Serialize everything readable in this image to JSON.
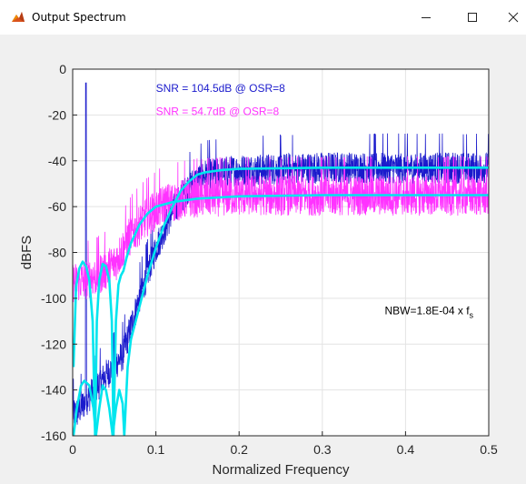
{
  "window": {
    "title": "Output Spectrum",
    "icon": "matlab-figure-icon",
    "controls": [
      "minimize",
      "maximize",
      "close"
    ]
  },
  "colors": {
    "series_blue": "#1a1acc",
    "series_magenta": "#ff33ff",
    "fit": "#00e5ee",
    "axes_bg": "#ffffff",
    "figure_bg": "#f0f0f0",
    "grid": "#e3e3e3"
  },
  "chart_data": {
    "type": "line",
    "title": "",
    "xlabel": "Normalized Frequency",
    "ylabel": "dBFS",
    "xlim": [
      0,
      0.5
    ],
    "ylim": [
      -160,
      0
    ],
    "xticks": [
      0,
      0.1,
      0.2,
      0.3,
      0.4,
      0.5
    ],
    "xtick_labels": [
      "0",
      "0.1",
      "0.2",
      "0.3",
      "0.4",
      "0.5"
    ],
    "yticks": [
      0,
      -20,
      -40,
      -60,
      -80,
      -100,
      -120,
      -140,
      -160
    ],
    "ytick_labels": [
      "0",
      "-20",
      "-40",
      "-60",
      "-80",
      "-100",
      "-120",
      "-140",
      "-160"
    ],
    "grid": true,
    "series": [
      {
        "color": "#1a1acc",
        "description": "noisy output spectrum, higher noise floor",
        "signal_tone": {
          "x": 0.016,
          "y": -6
        },
        "envelope": [
          [
            0.005,
            -150
          ],
          [
            0.03,
            -138
          ],
          [
            0.06,
            -125
          ],
          [
            0.08,
            -100
          ],
          [
            0.1,
            -78
          ],
          [
            0.12,
            -62
          ],
          [
            0.14,
            -51
          ],
          [
            0.16,
            -46
          ],
          [
            0.2,
            -44
          ],
          [
            0.3,
            -43
          ],
          [
            0.5,
            -43
          ]
        ]
      },
      {
        "color": "#ff33ff",
        "description": "noisy output spectrum, lower noise floor",
        "envelope": [
          [
            0.005,
            -93
          ],
          [
            0.03,
            -90
          ],
          [
            0.05,
            -85
          ],
          [
            0.07,
            -72
          ],
          [
            0.09,
            -64
          ],
          [
            0.11,
            -59
          ],
          [
            0.14,
            -56
          ],
          [
            0.2,
            -55
          ],
          [
            0.3,
            -55
          ],
          [
            0.5,
            -55
          ]
        ]
      },
      {
        "color": "#00e5ee",
        "description": "smoothed fit of higher-floor spectrum",
        "points": [
          [
            0.001,
            -160
          ],
          [
            0.005,
            -148
          ],
          [
            0.01,
            -138
          ],
          [
            0.014,
            -136
          ],
          [
            0.02,
            -138
          ],
          [
            0.025,
            -148
          ],
          [
            0.028,
            -160
          ],
          [
            0.032,
            -148
          ],
          [
            0.036,
            -138
          ],
          [
            0.04,
            -140
          ],
          [
            0.044,
            -148
          ],
          [
            0.048,
            -160
          ],
          [
            0.052,
            -148
          ],
          [
            0.056,
            -140
          ],
          [
            0.06,
            -146
          ],
          [
            0.062,
            -160
          ],
          [
            0.066,
            -130
          ],
          [
            0.07,
            -118
          ],
          [
            0.08,
            -104
          ],
          [
            0.09,
            -90
          ],
          [
            0.1,
            -78
          ],
          [
            0.11,
            -68
          ],
          [
            0.12,
            -60
          ],
          [
            0.13,
            -53
          ],
          [
            0.14,
            -49
          ],
          [
            0.15,
            -46
          ],
          [
            0.16,
            -45
          ],
          [
            0.18,
            -44
          ],
          [
            0.2,
            -43.5
          ],
          [
            0.3,
            -43
          ],
          [
            0.5,
            -43
          ]
        ]
      },
      {
        "color": "#00e5ee",
        "description": "smoothed fit of lower-floor spectrum",
        "points": [
          [
            0.001,
            -130
          ],
          [
            0.004,
            -95
          ],
          [
            0.008,
            -87
          ],
          [
            0.012,
            -84
          ],
          [
            0.016,
            -86
          ],
          [
            0.02,
            -92
          ],
          [
            0.024,
            -110
          ],
          [
            0.027,
            -160
          ],
          [
            0.029,
            -110
          ],
          [
            0.032,
            -92
          ],
          [
            0.036,
            -85
          ],
          [
            0.04,
            -86
          ],
          [
            0.044,
            -92
          ],
          [
            0.047,
            -110
          ],
          [
            0.049,
            -160
          ],
          [
            0.052,
            -110
          ],
          [
            0.055,
            -94
          ],
          [
            0.058,
            -90
          ],
          [
            0.061,
            -88
          ],
          [
            0.065,
            -82
          ],
          [
            0.07,
            -76
          ],
          [
            0.08,
            -68
          ],
          [
            0.09,
            -63
          ],
          [
            0.1,
            -60
          ],
          [
            0.12,
            -58
          ],
          [
            0.15,
            -56.5
          ],
          [
            0.2,
            -55.5
          ],
          [
            0.3,
            -55
          ],
          [
            0.5,
            -55
          ]
        ]
      }
    ],
    "annotations": [
      {
        "text": "SNR = 104.5dB @ OSR=8",
        "color": "#1a1acc",
        "x": 0.1,
        "y": -10
      },
      {
        "text": "SNR = 54.7dB @ OSR=8",
        "color": "#ff33ff",
        "x": 0.1,
        "y": -20
      },
      {
        "text": "NBW=1.8E-04 x f",
        "subscript": "s",
        "color": "#000000",
        "x": 0.375,
        "y": -107
      }
    ]
  }
}
